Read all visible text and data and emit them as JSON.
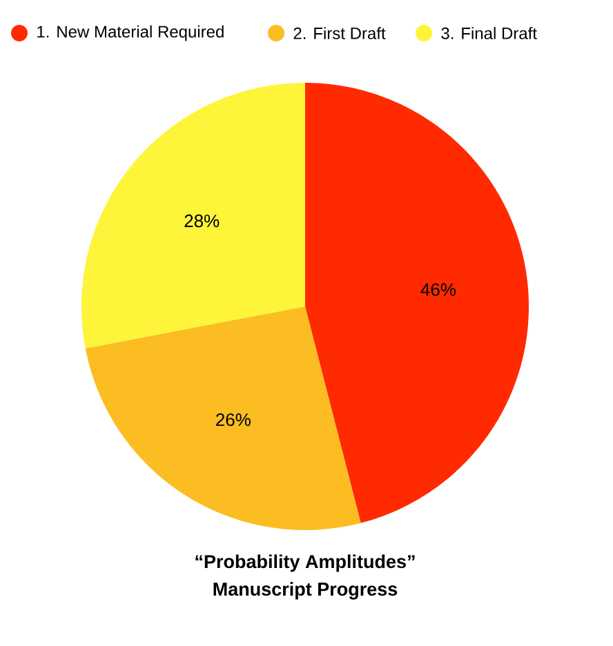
{
  "chart_data": {
    "type": "pie",
    "title": "“Probability Amplitudes”",
    "subtitle": "Manuscript Progress",
    "categories": [
      "1. New Material Required",
      "2. First Draft",
      "3. Final Draft"
    ],
    "values": [
      46,
      26,
      28
    ],
    "colors": [
      "#ff2a00",
      "#fbbd21",
      "#fef43a"
    ],
    "value_labels": [
      "46%",
      "26%",
      "28%"
    ],
    "legend": "top"
  }
}
